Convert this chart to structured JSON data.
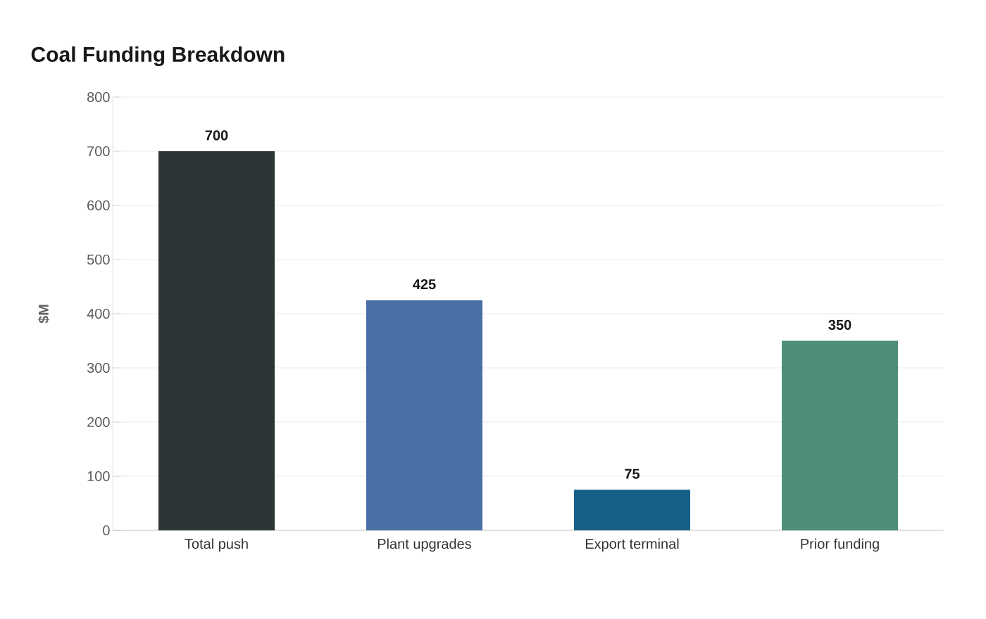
{
  "chart_data": {
    "type": "bar",
    "title": "Coal Funding Breakdown",
    "ylabel": "$M",
    "categories": [
      "Total push",
      "Plant upgrades",
      "Export terminal",
      "Prior funding"
    ],
    "values": [
      700,
      425,
      75,
      350
    ],
    "colors": [
      "#2d3436",
      "#4a6fa5",
      "#166088",
      "#4f8f7a"
    ],
    "ylim": [
      0,
      800
    ],
    "yticks": [
      0,
      100,
      200,
      300,
      400,
      500,
      600,
      700,
      800
    ],
    "grid": "y",
    "data_labels": true
  }
}
